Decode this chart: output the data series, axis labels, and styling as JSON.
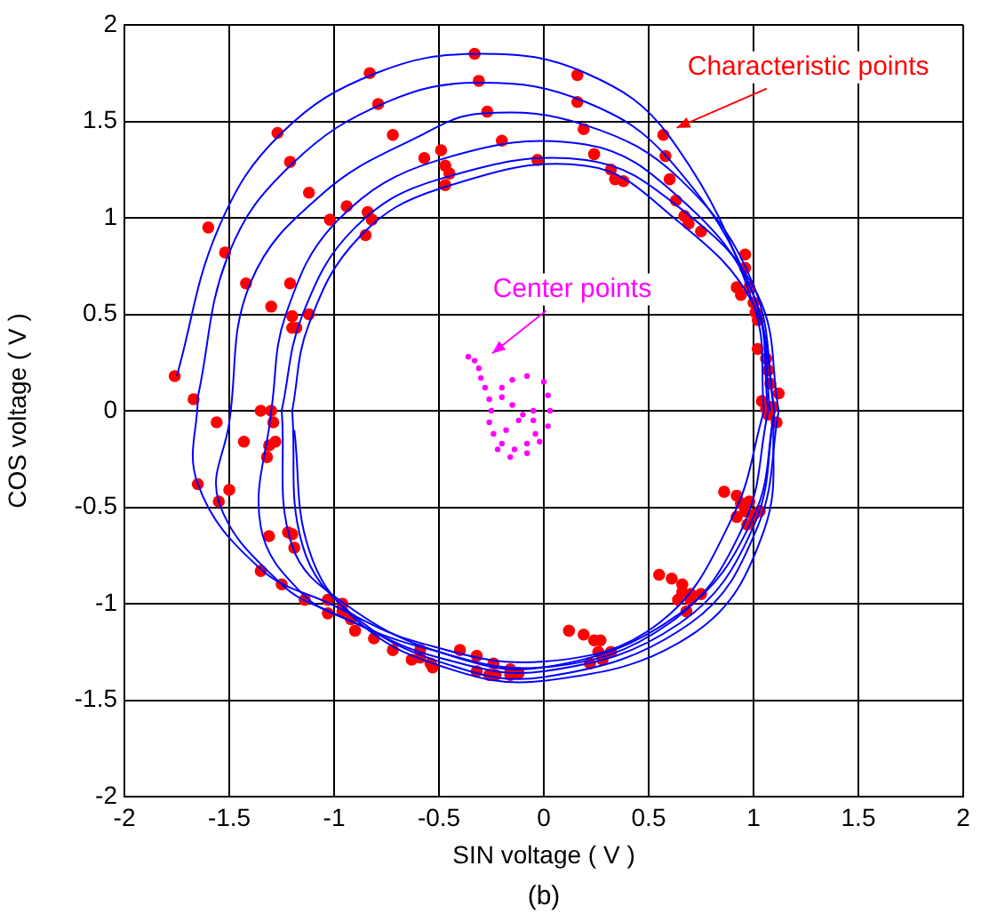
{
  "chart_data": {
    "type": "line",
    "xlabel": "SIN voltage ( V )",
    "ylabel": "COS voltage ( V )",
    "xlim": [
      -2,
      2
    ],
    "ylim": [
      -2,
      2
    ],
    "xticks": [
      -2,
      -1.5,
      -1,
      -0.5,
      0,
      0.5,
      1,
      1.5,
      2
    ],
    "yticks": [
      -2,
      -1.5,
      -1,
      -0.5,
      0,
      0.5,
      1,
      1.5,
      2
    ],
    "grid": true,
    "legend": false,
    "annotations": [
      {
        "text": "Characteristic points",
        "x": 0.6,
        "y": 1.43
      },
      {
        "text": "Center points",
        "x": -0.28,
        "y": 0.26
      },
      "(b)"
    ],
    "series": [
      {
        "marker": "none",
        "color": "#0000ff",
        "x": [
          -1.75,
          -1.55,
          -1.25,
          -0.8,
          -0.3,
          0.2,
          0.6,
          1.0,
          1.05
        ],
        "values": [
          0.18,
          0.95,
          1.44,
          1.75,
          1.85,
          1.75,
          1.42,
          0.55,
          0
        ]
      },
      {
        "marker": "none",
        "color": "#0000ff",
        "x": [
          -1.65,
          -1.65,
          -1.35,
          -1.02,
          -0.6,
          0,
          0.55,
          0.9,
          1.05
        ],
        "values": [
          0.07,
          -0.38,
          -0.82,
          -1.0,
          -1.2,
          -1.3,
          -1.1,
          -0.55,
          0
        ]
      },
      {
        "marker": "none",
        "color": "#0000ff",
        "x": [
          -1.65,
          -1.5,
          -1.2,
          -0.75,
          -0.3,
          0.2,
          0.6,
          1.0,
          1.07
        ],
        "values": [
          0.07,
          0.82,
          1.28,
          1.6,
          1.7,
          1.6,
          1.3,
          0.6,
          0
        ]
      },
      {
        "marker": "none",
        "color": "#0000ff",
        "x": [
          -1.5,
          -1.55,
          -1.25,
          -1.0,
          -0.6,
          0,
          0.6,
          0.95,
          1.07
        ],
        "values": [
          -0.06,
          -0.47,
          -0.9,
          -1.05,
          -1.22,
          -1.33,
          -1.1,
          -0.6,
          0
        ]
      },
      {
        "marker": "none",
        "color": "#0000ff",
        "x": [
          -1.5,
          -1.4,
          -1.05,
          -0.6,
          -0.3,
          0.2,
          0.65,
          1.0,
          1.1
        ],
        "values": [
          -0.06,
          0.66,
          1.13,
          1.42,
          1.54,
          1.48,
          1.2,
          0.65,
          0
        ]
      },
      {
        "marker": "none",
        "color": "#0000ff",
        "x": [
          -1.3,
          -1.35,
          -1.15,
          -0.9,
          -0.5,
          0,
          0.65,
          1.0,
          1.1
        ],
        "values": [
          0,
          -0.6,
          -0.95,
          -1.1,
          -1.28,
          -1.35,
          -1.1,
          -0.6,
          0
        ]
      },
      {
        "marker": "none",
        "color": "#0000ff",
        "x": [
          -1.3,
          -1.23,
          -0.98,
          -0.5,
          0.2,
          0.65,
          1.0,
          1.08
        ],
        "values": [
          0,
          0.5,
          0.99,
          1.3,
          1.38,
          1.1,
          0.6,
          0
        ]
      },
      {
        "marker": "none",
        "color": "#0000ff",
        "x": [
          -1.25,
          -1.2,
          -0.95,
          -0.5,
          0,
          0.65,
          1.0,
          1.1
        ],
        "values": [
          0,
          -0.7,
          -1.0,
          -1.25,
          -1.33,
          -1.05,
          -0.55,
          0
        ]
      },
      {
        "marker": "none",
        "color": "#0000ff",
        "x": [
          -1.25,
          -1.15,
          -0.9,
          -0.5,
          0.2,
          0.65,
          1.02,
          1.12
        ],
        "values": [
          0,
          0.5,
          0.95,
          1.2,
          1.3,
          1.05,
          0.6,
          0
        ]
      },
      {
        "marker": "none",
        "color": "#0000ff",
        "x": [
          -1.2,
          -1.15,
          -0.92,
          -0.5,
          0,
          0.7,
          1.02,
          1.12
        ],
        "values": [
          0,
          -0.7,
          -1.05,
          -1.3,
          -1.38,
          -1.1,
          -0.6,
          0
        ]
      },
      {
        "marker": "none",
        "color": "#0000ff",
        "x": [
          -1.2,
          -1.12,
          -0.88,
          -0.5,
          0.2,
          0.62,
          1.0,
          1.1
        ],
        "values": [
          0,
          0.45,
          0.9,
          1.15,
          1.27,
          1.0,
          0.55,
          0
        ]
      },
      {
        "marker": "none",
        "color": "#0000ff",
        "x": [
          -1.19,
          -1.12,
          -0.9,
          -0.5,
          0,
          0.72,
          1.05,
          1.1
        ],
        "values": [
          -0.1,
          -0.72,
          -1.08,
          -1.32,
          -1.4,
          -1.15,
          -0.62,
          0
        ]
      },
      {
        "type": "scatter",
        "marker": "circle",
        "color": "#ff0000",
        "x": [
          -0.33,
          -0.31,
          -0.27,
          -0.2,
          -0.83,
          -0.79,
          -0.72,
          -0.57,
          -0.49,
          -0.47,
          -0.45,
          -0.47,
          -1.27,
          -1.21,
          -1.12,
          -0.94,
          -1.02,
          -0.84,
          -0.82,
          -0.85,
          -1.6,
          -1.52,
          -1.42,
          -1.21,
          -1.3,
          -1.2,
          -1.12,
          -1.2,
          -1.18,
          -1.76,
          -1.67,
          -1.56,
          -1.35,
          -1.3,
          -1.29,
          -1.43,
          -1.31,
          -1.28,
          -1.32,
          -1.65,
          -1.55,
          -1.5,
          -1.31,
          -1.22,
          -1.2,
          -1.19,
          -1.35,
          -1.25,
          -1.14,
          -1.03,
          -0.96,
          -1.03,
          -0.96,
          -0.92,
          -0.9,
          -0.81,
          -0.72,
          -0.63,
          -0.59,
          -0.59,
          -0.54,
          -0.53,
          -0.4,
          -0.32,
          -0.32,
          -0.24,
          -0.26,
          -0.23,
          -0.16,
          -0.16,
          -0.12,
          0.12,
          0.19,
          0.24,
          0.27,
          0.26,
          0.32,
          0.22,
          0.28,
          0.55,
          0.61,
          0.66,
          0.66,
          0.7,
          0.75,
          0.64,
          0.7,
          0.68,
          0.86,
          0.92,
          0.94,
          0.98,
          0.96,
          0.92,
          1.0,
          1.03,
          0.97,
          0.16,
          0.16,
          0.19,
          0.24,
          0.32,
          0.34,
          0.38,
          -0.03,
          0.57,
          0.58,
          0.6,
          0.63,
          0.67,
          0.69,
          0.75,
          0.96,
          0.96,
          0.92,
          0.94,
          0.98,
          1.0,
          1.01,
          1.02,
          1.02,
          1.06,
          1.07,
          1.08,
          1.12,
          1.04,
          1.06,
          1.09,
          1.07,
          1.11
        ],
        "values": [
          1.85,
          1.71,
          1.55,
          1.4,
          1.75,
          1.59,
          1.43,
          1.31,
          1.35,
          1.27,
          1.23,
          1.17,
          1.44,
          1.29,
          1.13,
          1.06,
          0.99,
          1.03,
          0.99,
          0.91,
          0.95,
          0.82,
          0.66,
          0.66,
          0.54,
          0.49,
          0.5,
          0.43,
          0.43,
          0.18,
          0.06,
          -0.06,
          0,
          0,
          -0.06,
          -0.16,
          -0.18,
          -0.16,
          -0.24,
          -0.38,
          -0.47,
          -0.41,
          -0.65,
          -0.63,
          -0.64,
          -0.71,
          -0.83,
          -0.9,
          -0.98,
          -0.98,
          -1.0,
          -1.05,
          -1.04,
          -1.08,
          -1.14,
          -1.18,
          -1.24,
          -1.29,
          -1.24,
          -1.28,
          -1.31,
          -1.33,
          -1.24,
          -1.27,
          -1.35,
          -1.31,
          -1.37,
          -1.37,
          -1.34,
          -1.37,
          -1.36,
          -1.14,
          -1.16,
          -1.19,
          -1.19,
          -1.25,
          -1.25,
          -1.31,
          -1.29,
          -0.85,
          -0.87,
          -0.9,
          -0.94,
          -0.95,
          -0.95,
          -0.98,
          -0.98,
          -1.04,
          -0.42,
          -0.44,
          -0.48,
          -0.47,
          -0.52,
          -0.55,
          -0.54,
          -0.52,
          -0.59,
          1.74,
          1.6,
          1.46,
          1.33,
          1.25,
          1.2,
          1.19,
          1.3,
          1.43,
          1.32,
          1.2,
          1.09,
          1.01,
          0.97,
          0.93,
          0.81,
          0.74,
          0.64,
          0.6,
          0.64,
          0.56,
          0.51,
          0.47,
          0.32,
          0.27,
          0.21,
          0.14,
          0.09,
          0.05,
          0.01,
          0.02,
          -0.02,
          -0.06
        ]
      },
      {
        "type": "scatter",
        "marker": "circle",
        "color": "#ff00ff",
        "x": [
          -0.36,
          -0.33,
          -0.31,
          -0.3,
          -0.28,
          -0.26,
          -0.25,
          -0.26,
          -0.24,
          -0.2,
          -0.14,
          -0.08,
          -0.04,
          -0.05,
          -0.1,
          -0.15,
          -0.2,
          -0.2,
          -0.15,
          -0.08,
          0,
          0.02,
          0.03,
          0.02,
          -0.02,
          -0.08,
          -0.16,
          -0.22,
          -0.18,
          -0.12,
          -0.05
        ],
        "values": [
          0.28,
          0.26,
          0.22,
          0.17,
          0.12,
          0.06,
          0,
          -0.06,
          -0.12,
          -0.17,
          -0.2,
          -0.17,
          -0.12,
          -0.05,
          -0.02,
          0.03,
          0.07,
          0.12,
          0.16,
          0.18,
          0.15,
          0.08,
          0,
          -0.08,
          -0.16,
          -0.22,
          -0.24,
          -0.2,
          -0.1,
          -0.05,
          0
        ]
      }
    ]
  }
}
